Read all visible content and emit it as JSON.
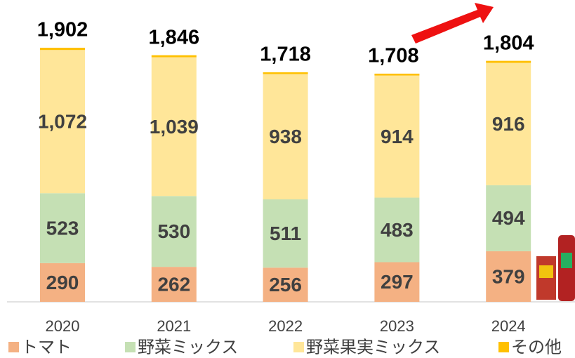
{
  "chart_data": {
    "type": "stacked-bar",
    "categories": [
      "2020",
      "2021",
      "2022",
      "2023",
      "2024"
    ],
    "series": [
      {
        "name": "トマト",
        "color": "#f4b183",
        "values": [
          290,
          262,
          256,
          297,
          379
        ]
      },
      {
        "name": "野菜ミックス",
        "color": "#c5e0b4",
        "values": [
          523,
          530,
          511,
          483,
          494
        ]
      },
      {
        "name": "野菜果実ミックス",
        "color": "#ffe699",
        "values": [
          1072,
          1039,
          938,
          914,
          916
        ],
        "value_labels": [
          "1,072",
          "1,039",
          "938",
          "914",
          "916"
        ]
      },
      {
        "name": "その他",
        "color": "#ffc000",
        "values": [
          17,
          15,
          13,
          14,
          15
        ]
      }
    ],
    "totals": {
      "values": [
        1902,
        1846,
        1718,
        1708,
        1804
      ],
      "value_labels": [
        "1,902",
        "1,846",
        "1,718",
        "1,708",
        "1,804"
      ]
    }
  }
}
